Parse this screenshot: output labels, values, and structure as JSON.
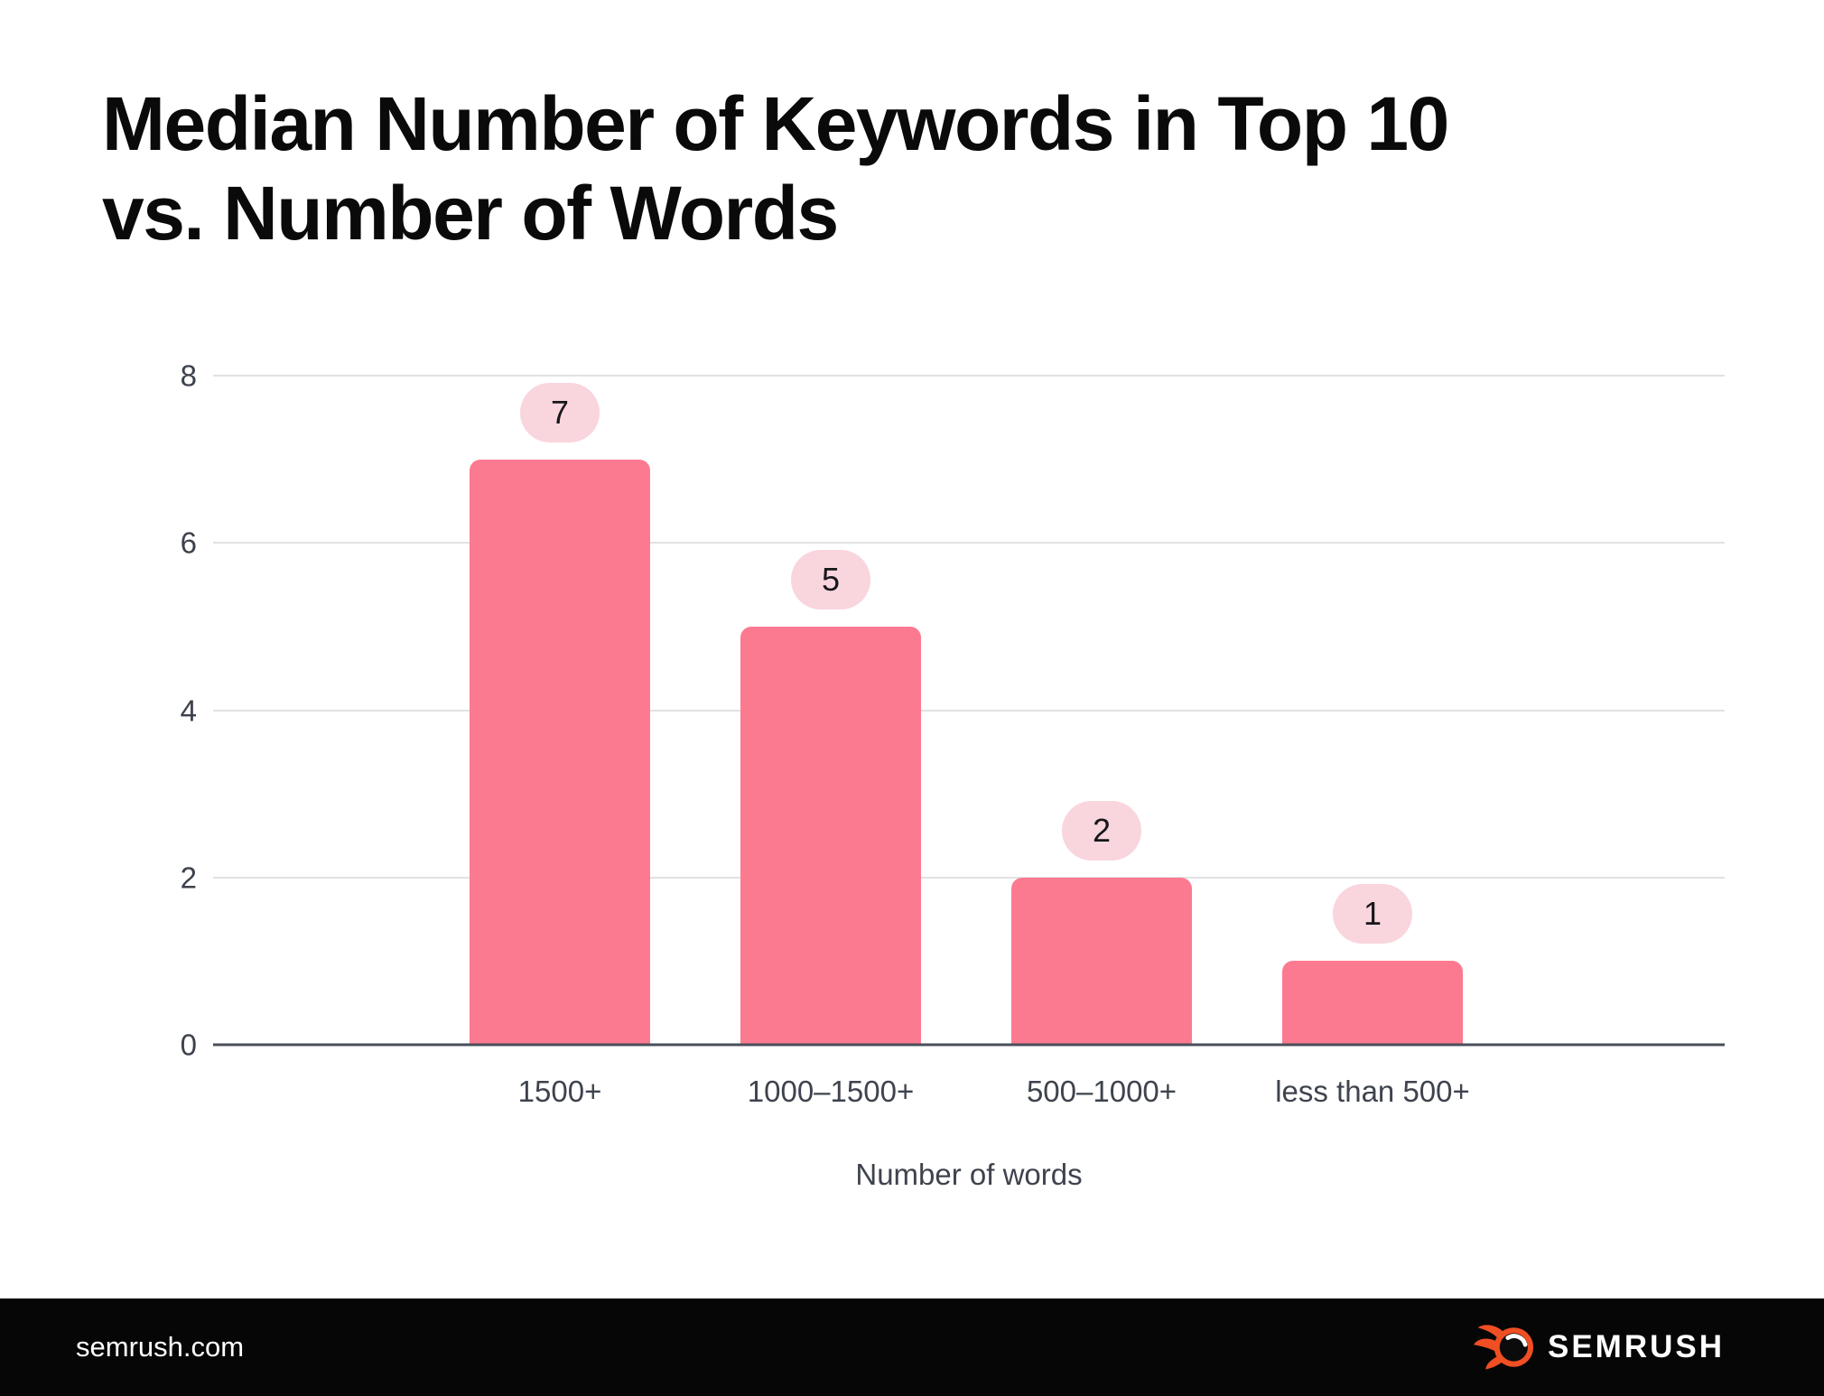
{
  "title": {
    "line1": "Median Number of Keywords in Top 10",
    "line2": "vs. Number of Words"
  },
  "chart_data": {
    "type": "bar",
    "title": "Median Number of Keywords in Top 10 vs. Number of Words",
    "categories": [
      "1500+",
      "1000–1500+",
      "500–1000+",
      "less than 500+"
    ],
    "values": [
      7,
      5,
      2,
      1
    ],
    "data_labels": [
      "7",
      "5",
      "2",
      "1"
    ],
    "xlabel": "Number of words",
    "ylabel": "",
    "ylim": [
      0,
      8
    ],
    "yticks": [
      0,
      2,
      4,
      6,
      8
    ],
    "grid": true,
    "legend": "none",
    "bar_color": "#fc7a90",
    "bubble_color": "#f9d5dd",
    "gridline_color": "#e1e2e5",
    "axis_line_color": "#4a4f58",
    "tick_label_color": "#3e434d"
  },
  "footer": {
    "site": "semrush.com",
    "brand": "SEMRUSH",
    "logo_orange": "#f04e23"
  }
}
